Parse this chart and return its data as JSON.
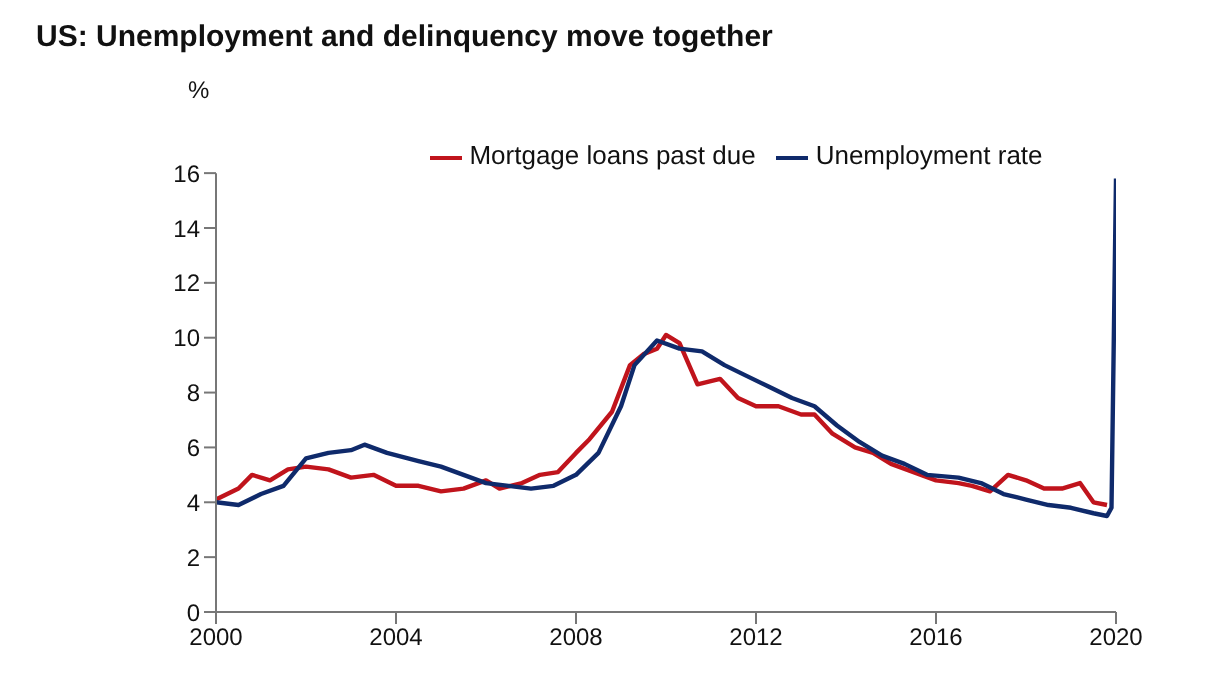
{
  "chart_data": {
    "type": "line",
    "title": "US: Unemployment and delinquency move together",
    "ylabel": "%",
    "xlim": [
      2000,
      2020
    ],
    "xticks": [
      2000,
      2004,
      2008,
      2012,
      2016,
      2020
    ],
    "ylim": [
      0,
      16
    ],
    "yticks": [
      0,
      2,
      4,
      6,
      8,
      10,
      12,
      14,
      16
    ],
    "grid": false,
    "legend": "top",
    "line_style": "solid",
    "marker": "none",
    "series": [
      {
        "name": "Mortgage loans past due",
        "color": "#c0141c",
        "x": [
          2000,
          2000.5,
          2000.8,
          2001.2,
          2001.6,
          2002,
          2002.5,
          2003,
          2003.5,
          2004,
          2004.5,
          2005,
          2005.5,
          2006,
          2006.3,
          2006.8,
          2007.2,
          2007.6,
          2008,
          2008.3,
          2008.8,
          2009.2,
          2009.5,
          2009.8,
          2010,
          2010.3,
          2010.7,
          2011.2,
          2011.6,
          2012,
          2012.5,
          2013,
          2013.3,
          2013.7,
          2014.2,
          2014.6,
          2015,
          2015.5,
          2016,
          2016.5,
          2016.8,
          2017.2,
          2017.6,
          2018,
          2018.4,
          2018.8,
          2019.2,
          2019.5,
          2019.8
        ],
        "values": [
          4.1,
          4.5,
          5.0,
          4.8,
          5.2,
          5.3,
          5.2,
          4.9,
          5.0,
          4.6,
          4.6,
          4.4,
          4.5,
          4.8,
          4.5,
          4.7,
          5.0,
          5.1,
          5.8,
          6.3,
          7.3,
          9.0,
          9.4,
          9.6,
          10.1,
          9.8,
          8.3,
          8.5,
          7.8,
          7.5,
          7.5,
          7.2,
          7.2,
          6.5,
          6.0,
          5.8,
          5.4,
          5.1,
          4.8,
          4.7,
          4.6,
          4.4,
          5.0,
          4.8,
          4.5,
          4.5,
          4.7,
          4.0,
          3.9
        ]
      },
      {
        "name": "Unemployment rate",
        "color": "#0f2a6b",
        "x": [
          2000,
          2000.5,
          2001,
          2001.5,
          2002,
          2002.5,
          2003,
          2003.3,
          2003.8,
          2004.5,
          2005,
          2005.5,
          2006,
          2006.5,
          2007,
          2007.5,
          2008,
          2008.5,
          2009,
          2009.3,
          2009.8,
          2010.3,
          2010.8,
          2011.3,
          2011.8,
          2012.3,
          2012.8,
          2013.3,
          2013.8,
          2014.3,
          2014.8,
          2015.3,
          2015.8,
          2016.5,
          2017,
          2017.5,
          2018,
          2018.5,
          2019,
          2019.5,
          2019.8,
          2019.9,
          2020
        ],
        "values": [
          4.0,
          3.9,
          4.3,
          4.6,
          5.6,
          5.8,
          5.9,
          6.1,
          5.8,
          5.5,
          5.3,
          5.0,
          4.7,
          4.6,
          4.5,
          4.6,
          5.0,
          5.8,
          7.5,
          9.0,
          9.9,
          9.6,
          9.5,
          9.0,
          8.6,
          8.2,
          7.8,
          7.5,
          6.8,
          6.2,
          5.7,
          5.4,
          5.0,
          4.9,
          4.7,
          4.3,
          4.1,
          3.9,
          3.8,
          3.6,
          3.5,
          3.8,
          15.8
        ]
      }
    ]
  }
}
